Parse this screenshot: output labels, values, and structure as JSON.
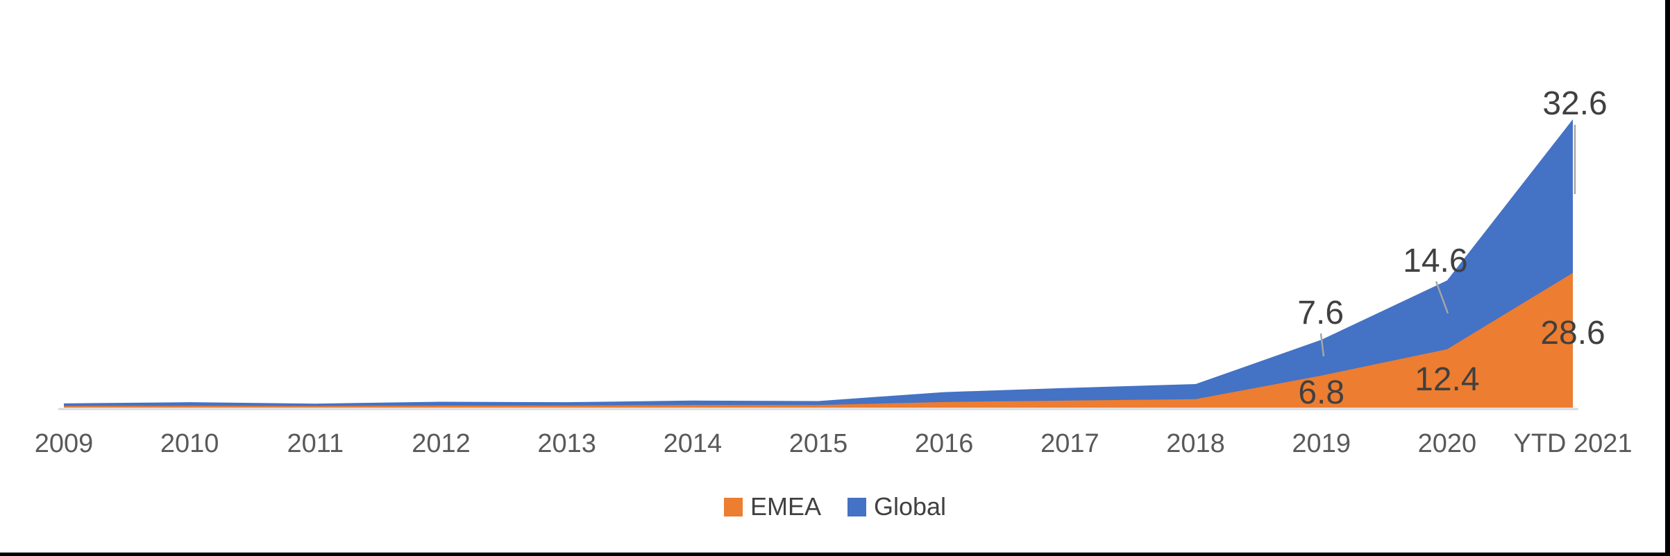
{
  "chart_data": {
    "type": "area",
    "stacked": true,
    "title": "",
    "xlabel": "",
    "ylabel": "",
    "y_axis_visible": false,
    "gridlines": false,
    "categories": [
      "2009",
      "2010",
      "2011",
      "2012",
      "2013",
      "2014",
      "2015",
      "2016",
      "2017",
      "2018",
      "2019",
      "2020",
      "YTD 2021"
    ],
    "series": [
      {
        "name": "EMEA",
        "color": "#ED7D31",
        "values": [
          0.35,
          0.4,
          0.35,
          0.45,
          0.45,
          0.55,
          0.55,
          1.2,
          1.5,
          1.8,
          6.8,
          12.4,
          28.6
        ]
      },
      {
        "name": "Global",
        "color": "#4472C4",
        "values": [
          0.55,
          0.75,
          0.5,
          0.8,
          0.7,
          0.95,
          0.85,
          2.1,
          2.7,
          3.2,
          7.6,
          14.6,
          32.6
        ]
      }
    ],
    "data_labels": [
      {
        "series": "Global",
        "category": "2019",
        "text": "7.6"
      },
      {
        "series": "EMEA",
        "category": "2019",
        "text": "6.8"
      },
      {
        "series": "Global",
        "category": "2020",
        "text": "14.6"
      },
      {
        "series": "EMEA",
        "category": "2020",
        "text": "12.4"
      },
      {
        "series": "Global",
        "category": "YTD 2021",
        "text": "32.6"
      },
      {
        "series": "EMEA",
        "category": "YTD 2021",
        "text": "28.6"
      }
    ],
    "legend": {
      "position": "bottom",
      "items": [
        {
          "label": "EMEA",
          "color": "#ED7D31"
        },
        {
          "label": "Global",
          "color": "#4472C4"
        }
      ]
    },
    "colors": {
      "label_text": "#404040",
      "axis_text": "#595959",
      "leader_line": "#A6A6A6",
      "axis_line": "#D9D9D9",
      "screenshot_border": "#000000"
    }
  }
}
